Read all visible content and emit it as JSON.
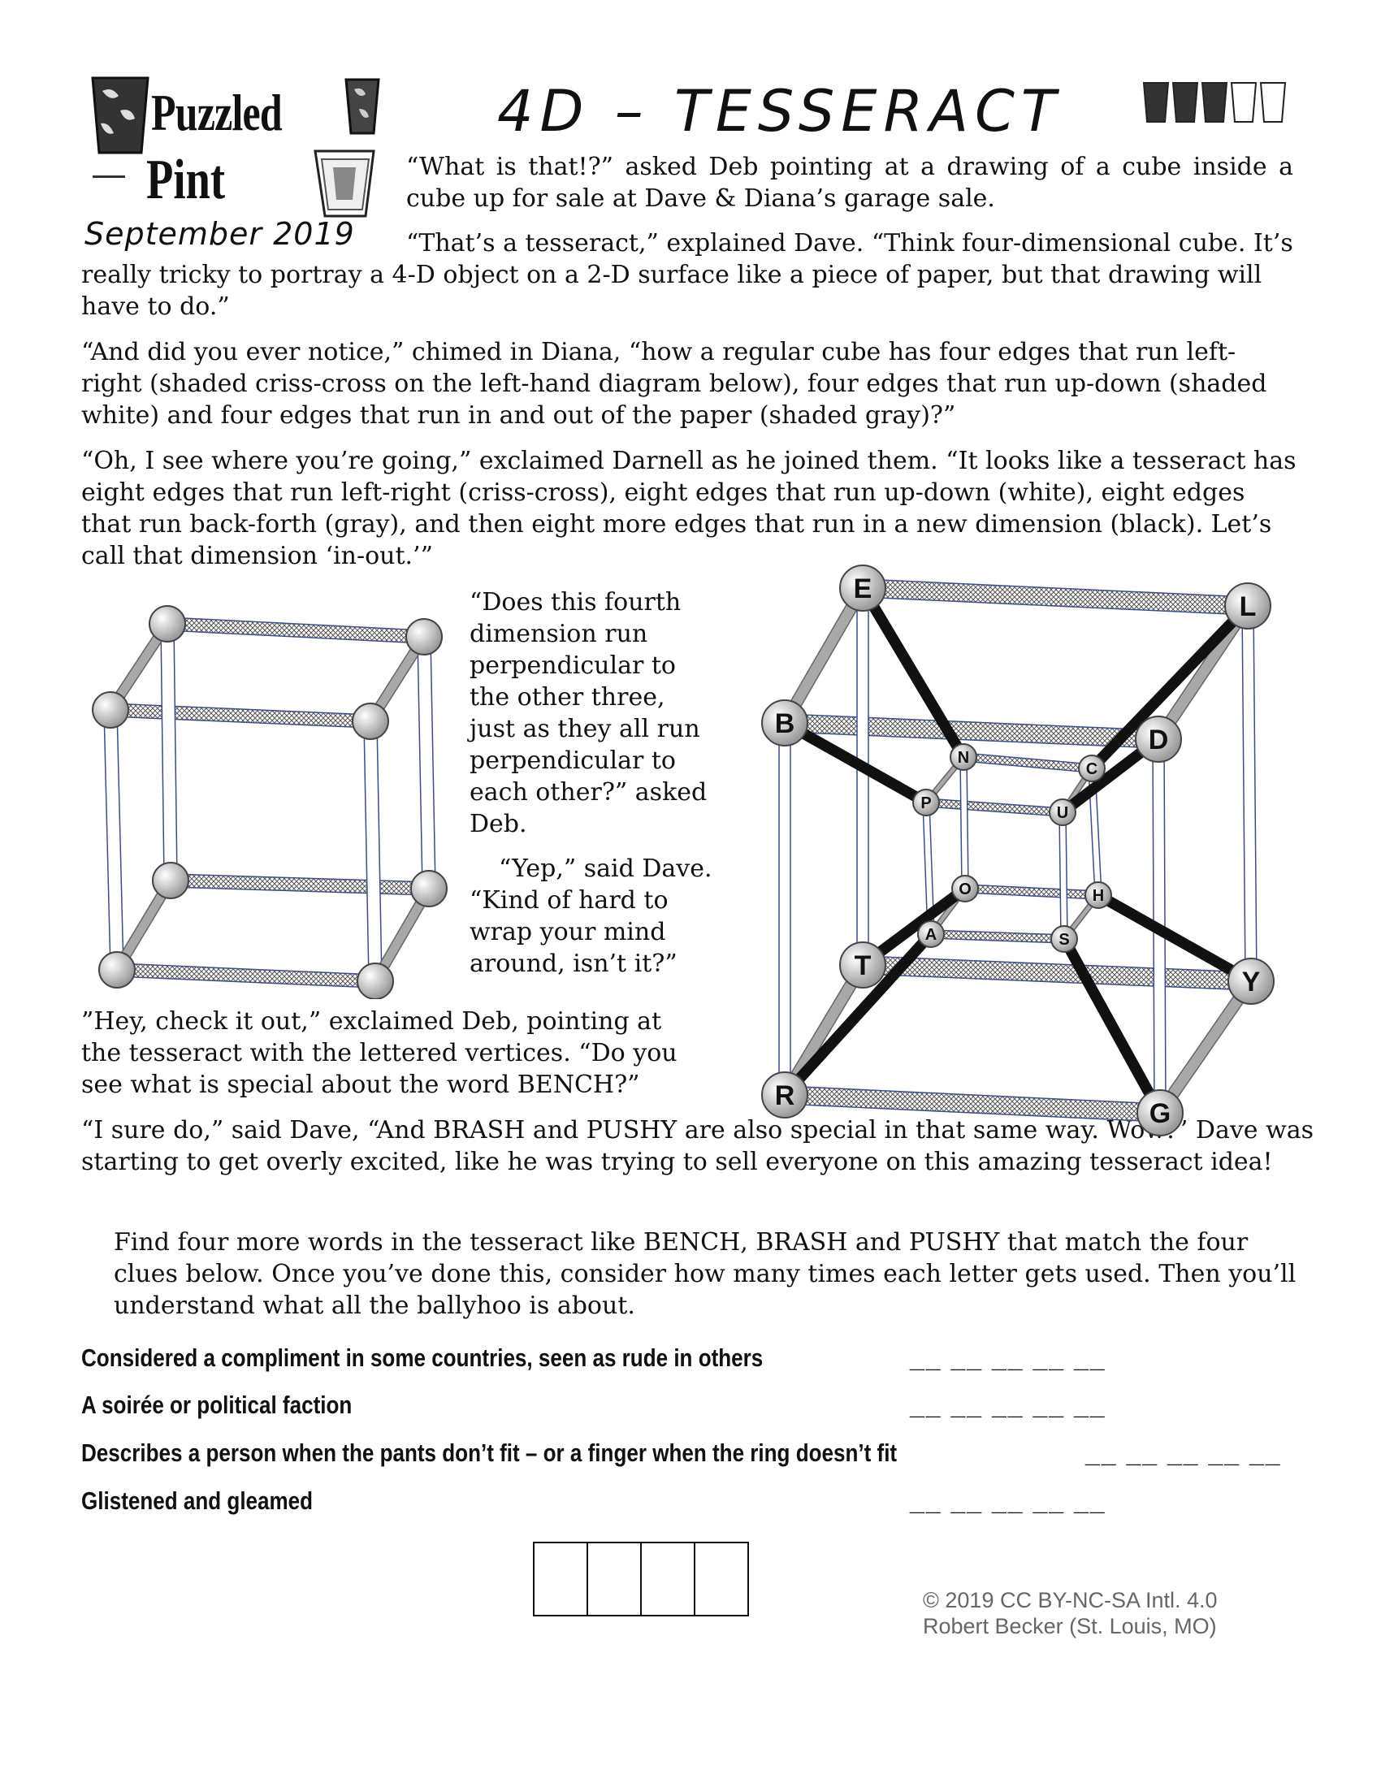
{
  "logo": {
    "line1": "Puzzled",
    "line2": "Pint",
    "date": "September 2019"
  },
  "title": "4D – TESSERACT",
  "difficulty": {
    "filled": 3,
    "total": 5
  },
  "paragraphs": {
    "p1a": "“What is that!?” asked Deb pointing at a drawing of a cube inside a cube up for sale at Dave & Diana’s garage sale.",
    "p2": "“That’s a tesseract,” explained Dave. “Think four-dimensional cube. It’s really tricky to portray a 4-D object on a 2-D surface like a piece of paper, but that drawing will have to do.”",
    "p3": "“And did you ever notice,” chimed in Diana, “how a regular cube has four edges that run left-right (shaded criss-cross on the left-hand diagram below), four edges that run up-down (shaded white) and four edges that run in and out of the paper (shaded gray)?”",
    "p4": "“Oh, I see where you’re going,” exclaimed Darnell as he joined them. “It looks like a tesseract has eight edges that run left-right (criss-cross), eight edges that run up-down (white), eight edges that run back-forth (gray), and then eight more edges that run in a new dimension (black). Let’s call that dimension ‘in-out.’”",
    "p5": "“Does this fourth dimension run perpendicular to the other three, just as they all run perpendicular to each other?” asked Deb.",
    "p6": "“Yep,” said Dave. “Kind of hard to wrap your mind around, isn’t it?”",
    "p7": "”Hey, check it out,” exclaimed Deb, pointing at the tesseract with the lettered vertices. “Do you see what is special about the word BENCH?”",
    "p8": "“I sure do,” said Dave, “And BRASH and PUSHY are also special in that same way. Wow!” Dave was starting to get overly excited, like he was trying to sell everyone on this amazing tesseract idea!",
    "p9": "Find four more words in the tesseract like BENCH, BRASH and PUSHY that match the four clues below. Once you’ve done this, consider how many times each letter gets used. Then you’ll understand what all the ballyhoo is about."
  },
  "vertex_letters": [
    "E",
    "L",
    "B",
    "D",
    "N",
    "C",
    "P",
    "U",
    "O",
    "H",
    "A",
    "S",
    "T",
    "Y",
    "R",
    "G"
  ],
  "clues": [
    {
      "text": "Considered a compliment in some countries, seen as rude in others",
      "blanks": "__ __ __ __ __"
    },
    {
      "text": "A soirée or political faction",
      "blanks": "__ __ __ __ __"
    },
    {
      "text": "Describes a person when the pants don’t fit – or a finger when the ring doesn’t fit",
      "blanks": "__ __ __ __ __"
    },
    {
      "text": "Glistened and gleamed",
      "blanks": "__ __ __ __ __"
    }
  ],
  "answer_cells": 4,
  "credits": {
    "line1": "© 2019 CC BY-NC-SA Intl. 4.0",
    "line2": "Robert Becker (St. Louis, MO)"
  }
}
